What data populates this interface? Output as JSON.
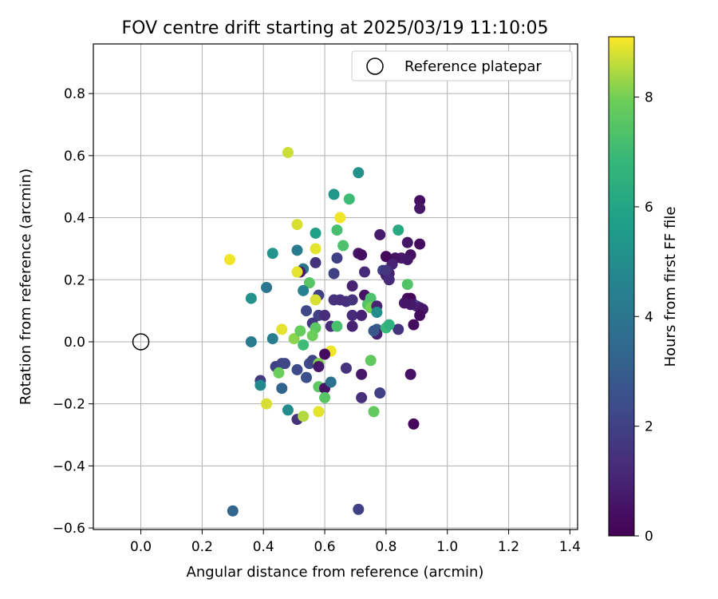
{
  "chart_data": {
    "type": "scatter",
    "title": "FOV centre drift starting at 2025/03/19 11:10:05",
    "xlabel": "Angular distance from reference (arcmin)",
    "ylabel": "Rotation from reference (arcmin)",
    "xlim": [
      -0.155,
      1.425
    ],
    "ylim": [
      -0.605,
      0.96
    ],
    "grid": true,
    "x_ticks": [
      "0.0",
      "0.2",
      "0.4",
      "0.6",
      "0.8",
      "1.0",
      "1.2",
      "1.4"
    ],
    "y_ticks": [
      "−0.6",
      "−0.4",
      "−0.2",
      "0.0",
      "0.2",
      "0.4",
      "0.6",
      "0.8"
    ],
    "colorbar": {
      "label": "Hours from first FF file",
      "colormap": "viridis",
      "range": [
        0,
        9.1
      ],
      "ticks": [
        "0",
        "2",
        "4",
        "6",
        "8"
      ]
    },
    "legend": {
      "placement": "upper right",
      "entries": [
        "Reference platepar"
      ]
    },
    "reference": {
      "x": 0.0,
      "y": 0.0
    },
    "series": [
      {
        "points": [
          [
            0.48,
            0.61,
            8.7
          ],
          [
            0.71,
            0.545,
            5.2
          ],
          [
            0.63,
            0.475,
            5.4
          ],
          [
            0.68,
            0.46,
            7.0
          ],
          [
            0.65,
            0.4,
            9.0
          ],
          [
            0.51,
            0.378,
            8.8
          ],
          [
            0.64,
            0.36,
            7.2
          ],
          [
            0.57,
            0.35,
            5.8
          ],
          [
            0.84,
            0.36,
            6.2
          ],
          [
            0.66,
            0.31,
            7.3
          ],
          [
            0.57,
            0.3,
            8.9
          ],
          [
            0.51,
            0.295,
            4.3
          ],
          [
            0.29,
            0.265,
            9.0
          ],
          [
            0.43,
            0.285,
            5.3
          ],
          [
            0.71,
            0.285,
            0.6
          ],
          [
            0.72,
            0.28,
            0.4
          ],
          [
            0.64,
            0.27,
            2.0
          ],
          [
            0.57,
            0.255,
            1.5
          ],
          [
            0.53,
            0.235,
            4.0
          ],
          [
            0.52,
            0.225,
            0.7
          ],
          [
            0.63,
            0.22,
            2.0
          ],
          [
            0.73,
            0.225,
            1.2
          ],
          [
            0.51,
            0.225,
            8.9
          ],
          [
            0.36,
            0.14,
            5.2
          ],
          [
            0.41,
            0.175,
            4.0
          ],
          [
            0.55,
            0.19,
            7.5
          ],
          [
            0.53,
            0.165,
            4.5
          ],
          [
            0.58,
            0.15,
            2.0
          ],
          [
            0.57,
            0.135,
            8.8
          ],
          [
            0.63,
            0.135,
            1.5
          ],
          [
            0.65,
            0.135,
            1.4
          ],
          [
            0.67,
            0.13,
            1.4
          ],
          [
            0.69,
            0.135,
            1.5
          ],
          [
            0.69,
            0.18,
            1.0
          ],
          [
            0.73,
            0.15,
            0.5
          ],
          [
            0.75,
            0.14,
            7.3
          ],
          [
            0.74,
            0.12,
            7.4
          ],
          [
            0.75,
            0.11,
            8.0
          ],
          [
            0.77,
            0.115,
            1.0
          ],
          [
            0.77,
            0.095,
            5.0
          ],
          [
            0.54,
            0.1,
            2.2
          ],
          [
            0.58,
            0.085,
            2.0
          ],
          [
            0.56,
            0.06,
            1.7
          ],
          [
            0.6,
            0.085,
            1.3
          ],
          [
            0.62,
            0.05,
            1.3
          ],
          [
            0.64,
            0.05,
            7.2
          ],
          [
            0.57,
            0.045,
            7.6
          ],
          [
            0.69,
            0.085,
            1.2
          ],
          [
            0.72,
            0.085,
            1.0
          ],
          [
            0.69,
            0.05,
            1.0
          ],
          [
            0.77,
            0.04,
            3.0
          ],
          [
            0.77,
            0.025,
            0.9
          ],
          [
            0.8,
            0.045,
            6.9
          ],
          [
            0.84,
            0.04,
            1.5
          ],
          [
            0.76,
            0.035,
            2.8
          ],
          [
            0.36,
            0.0,
            4.3
          ],
          [
            0.43,
            0.01,
            4.3
          ],
          [
            0.5,
            0.01,
            8.2
          ],
          [
            0.52,
            0.035,
            7.8
          ],
          [
            0.56,
            0.02,
            7.9
          ],
          [
            0.46,
            0.04,
            8.9
          ],
          [
            0.53,
            -0.01,
            7.0
          ],
          [
            0.62,
            -0.03,
            9.0
          ],
          [
            0.6,
            -0.04,
            0.3
          ],
          [
            0.44,
            -0.08,
            2.0
          ],
          [
            0.46,
            -0.07,
            2.1
          ],
          [
            0.47,
            -0.07,
            2.2
          ],
          [
            0.45,
            -0.1,
            7.9
          ],
          [
            0.51,
            -0.09,
            2.3
          ],
          [
            0.55,
            -0.07,
            2.4
          ],
          [
            0.56,
            -0.06,
            2.1
          ],
          [
            0.58,
            -0.07,
            8.1
          ],
          [
            0.58,
            -0.08,
            0.7
          ],
          [
            0.67,
            -0.085,
            1.5
          ],
          [
            0.72,
            -0.105,
            0.6
          ],
          [
            0.75,
            -0.06,
            7.7
          ],
          [
            0.39,
            -0.125,
            1.8
          ],
          [
            0.39,
            -0.14,
            4.8
          ],
          [
            0.46,
            -0.15,
            3.3
          ],
          [
            0.54,
            -0.115,
            2.5
          ],
          [
            0.58,
            -0.145,
            7.6
          ],
          [
            0.6,
            -0.15,
            0.5
          ],
          [
            0.62,
            -0.13,
            3.8
          ],
          [
            0.6,
            -0.18,
            7.5
          ],
          [
            0.72,
            -0.18,
            1.4
          ],
          [
            0.78,
            -0.165,
            2.0
          ],
          [
            0.88,
            -0.105,
            0.5
          ],
          [
            0.41,
            -0.2,
            8.8
          ],
          [
            0.48,
            -0.22,
            5.0
          ],
          [
            0.51,
            -0.25,
            1.5
          ],
          [
            0.53,
            -0.24,
            8.5
          ],
          [
            0.58,
            -0.225,
            8.9
          ],
          [
            0.76,
            -0.225,
            7.7
          ],
          [
            0.81,
            0.055,
            6.5
          ],
          [
            0.89,
            0.055,
            0.3
          ],
          [
            0.3,
            -0.545,
            3.3
          ],
          [
            0.71,
            -0.54,
            2.0
          ],
          [
            0.89,
            -0.265,
            0.2
          ],
          [
            0.91,
            0.455,
            0.4
          ],
          [
            0.91,
            0.43,
            0.6
          ],
          [
            0.91,
            0.315,
            0.3
          ],
          [
            0.87,
            0.32,
            0.6
          ],
          [
            0.88,
            0.28,
            0.4
          ],
          [
            0.87,
            0.265,
            0.6
          ],
          [
            0.85,
            0.27,
            0.7
          ],
          [
            0.83,
            0.27,
            0.5
          ],
          [
            0.8,
            0.275,
            0.2
          ],
          [
            0.82,
            0.25,
            1.0
          ],
          [
            0.79,
            0.23,
            2.0
          ],
          [
            0.8,
            0.215,
            0.8
          ],
          [
            0.81,
            0.22,
            1.0
          ],
          [
            0.78,
            0.345,
            0.7
          ],
          [
            0.87,
            0.185,
            7.4
          ],
          [
            0.87,
            0.14,
            0.4
          ],
          [
            0.88,
            0.14,
            0.2
          ],
          [
            0.89,
            0.12,
            0.6
          ],
          [
            0.9,
            0.115,
            1.9
          ],
          [
            0.91,
            0.11,
            0.9
          ],
          [
            0.92,
            0.105,
            0.6
          ],
          [
            0.88,
            0.12,
            0.7
          ],
          [
            0.86,
            0.125,
            0.6
          ],
          [
            0.91,
            0.085,
            0.3
          ],
          [
            0.8,
            0.23,
            1.6
          ],
          [
            0.81,
            0.2,
            1.2
          ]
        ]
      }
    ]
  }
}
